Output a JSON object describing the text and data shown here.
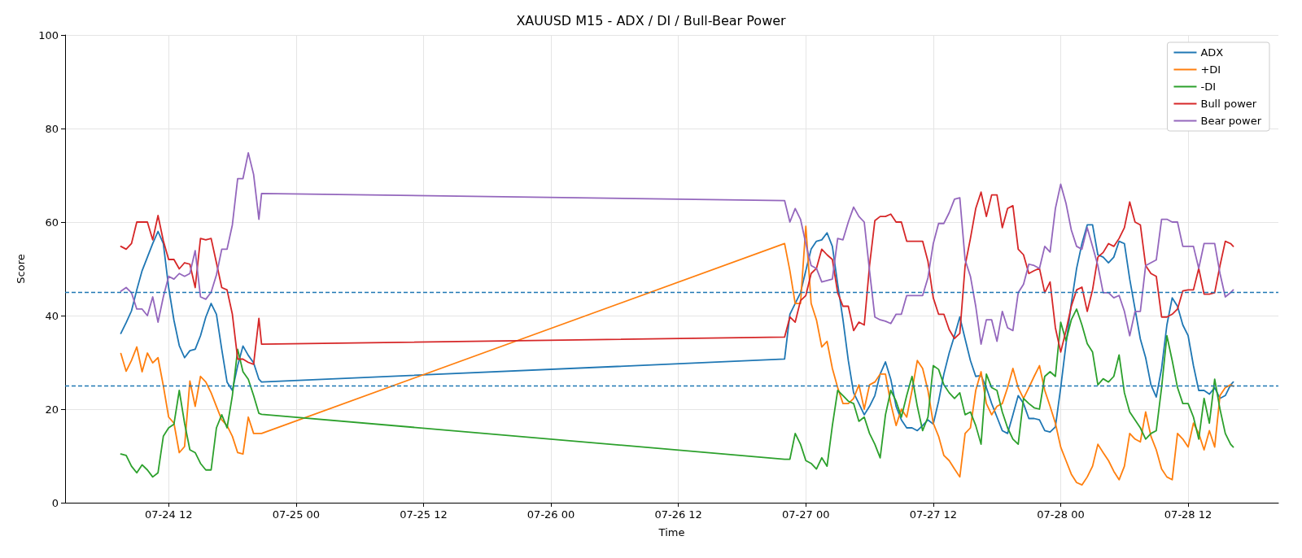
{
  "chart_data": {
    "type": "line",
    "title": "XAUUSD M15 - ADX / DI / Bull-Bear Power",
    "xlabel": "Time",
    "ylabel": "Score",
    "x": [
      "--07-24T07:30",
      "--07-24T08:00",
      "--07-24T08:30",
      "--07-24T09:00",
      "--07-24T09:30",
      "--07-24T10:00",
      "--07-24T10:30",
      "--07-24T11:00",
      "--07-24T11:30",
      "--07-24T12:00",
      "--07-24T12:30",
      "--07-24T13:00",
      "--07-24T13:30",
      "--07-24T14:00",
      "--07-24T14:30",
      "--07-24T15:00",
      "--07-24T15:30",
      "--07-24T16:00",
      "--07-24T16:30",
      "--07-24T17:00",
      "--07-24T17:30",
      "--07-24T18:00",
      "--07-24T18:30",
      "--07-24T19:00",
      "--07-24T19:30",
      "--07-24T20:00",
      "--07-24T20:30",
      "--07-24T20:45",
      "--07-26T22:00",
      "--07-26T22:30",
      "--07-26T23:00",
      "--07-26T23:30",
      "--07-27T00:00",
      "--07-27T00:30",
      "--07-27T01:00",
      "--07-27T01:30",
      "--07-27T02:00",
      "--07-27T02:30",
      "--07-27T03:00",
      "--07-27T03:30",
      "--07-27T04:00",
      "--07-27T04:30",
      "--07-27T05:00",
      "--07-27T05:30",
      "--07-27T06:00",
      "--07-27T06:30",
      "--07-27T07:00",
      "--07-27T07:30",
      "--07-27T08:00",
      "--07-27T08:30",
      "--07-27T09:00",
      "--07-27T09:30",
      "--07-27T10:00",
      "--07-27T10:30",
      "--07-27T11:00",
      "--07-27T11:30",
      "--07-27T12:00",
      "--07-27T12:30",
      "--07-27T13:00",
      "--07-27T13:30",
      "--07-27T14:00",
      "--07-27T14:30",
      "--07-27T15:00",
      "--07-27T15:30",
      "--07-27T16:00",
      "--07-27T16:30",
      "--07-27T17:00",
      "--07-27T17:30",
      "--07-27T18:00",
      "--07-27T18:30",
      "--07-27T19:00",
      "--07-27T19:30",
      "--07-27T20:00",
      "--07-27T20:30",
      "--07-27T21:00",
      "--07-27T21:30",
      "--07-27T22:00",
      "--07-27T22:30",
      "--07-27T23:00",
      "--07-27T23:30",
      "--07-28T00:00",
      "--07-28T00:30",
      "--07-28T01:00",
      "--07-28T01:30",
      "--07-28T02:00",
      "--07-28T02:30",
      "--07-28T03:00",
      "--07-28T03:30",
      "--07-28T04:00",
      "--07-28T04:30",
      "--07-28T05:00",
      "--07-28T05:30",
      "--07-28T06:00",
      "--07-28T06:30",
      "--07-28T07:00",
      "--07-28T07:30",
      "--07-28T08:00",
      "--07-28T08:30",
      "--07-28T09:00",
      "--07-28T09:30",
      "--07-28T10:00",
      "--07-28T10:30",
      "--07-28T11:00",
      "--07-28T11:30",
      "--07-28T12:00",
      "--07-28T12:30",
      "--07-28T13:00",
      "--07-28T13:30",
      "--07-28T14:00",
      "--07-28T14:30",
      "--07-28T15:00",
      "--07-28T15:30",
      "--07-28T16:00",
      "--07-28T16:15"
    ],
    "series": [
      {
        "name": "ADX",
        "color": "#1f77b4",
        "values": [
          36.2,
          38.5,
          41,
          45.5,
          49.6,
          52.5,
          55.4,
          58,
          55.4,
          46,
          39,
          33.6,
          31,
          32.5,
          32.8,
          35.7,
          39.7,
          42.6,
          40.3,
          32.8,
          25.8,
          24,
          29.3,
          33.5,
          31.5,
          29.9,
          26.4,
          25.8,
          30.7,
          40.3,
          42.6,
          44.9,
          49.6,
          54.2,
          55.9,
          56.2,
          57.7,
          54.8,
          46.7,
          39.1,
          30.4,
          23.5,
          21.2,
          18.8,
          20.6,
          22.9,
          27.5,
          30.1,
          26.4,
          20.6,
          17.7,
          16,
          16,
          15.4,
          16.5,
          17.7,
          16.8,
          21.7,
          27.5,
          32,
          35.7,
          39.7,
          35,
          30.4,
          27,
          27.2,
          24.6,
          21.2,
          18.3,
          15.4,
          14.8,
          18.8,
          22.9,
          21.2,
          18,
          18,
          17.7,
          15.4,
          15.1,
          16.2,
          24.6,
          33.9,
          42.6,
          50.1,
          55.4,
          59.4,
          59.4,
          53,
          52.5,
          51.3,
          52.5,
          55.9,
          55.4,
          47.8,
          41.4,
          35,
          31,
          25.2,
          22.6,
          28.7,
          38,
          43.8,
          42,
          38,
          35.7,
          29.3,
          24,
          24,
          23.2,
          24.6,
          22.3,
          22.9,
          25.2,
          25.8
        ]
      },
      {
        "name": "+DI",
        "color": "#ff7f0e",
        "values": [
          31.9,
          28.1,
          30.4,
          33.3,
          28,
          32,
          29.9,
          31,
          25,
          18.3,
          17,
          10.7,
          12,
          26,
          20.6,
          27,
          25.8,
          23.5,
          20.6,
          17.7,
          16.5,
          14.2,
          10.7,
          10.4,
          18.3,
          14.8,
          14.8,
          14.8,
          55.4,
          49.6,
          42.6,
          42.6,
          59.1,
          42.6,
          39.1,
          33.3,
          34.5,
          28.7,
          24.6,
          21.2,
          21.2,
          22.3,
          25.2,
          20,
          25.2,
          25.8,
          27.5,
          27.5,
          21.2,
          16.5,
          20,
          18.3,
          24,
          30.4,
          28.7,
          24,
          17,
          14.2,
          10.1,
          9,
          7.2,
          5.5,
          14.8,
          16,
          24,
          28,
          21.2,
          18.8,
          20.6,
          21.2,
          24.6,
          28.7,
          24.6,
          22.3,
          24.6,
          27,
          29.3,
          24,
          20.6,
          17,
          11.9,
          9,
          6.1,
          4.3,
          3.8,
          5.5,
          7.8,
          12.5,
          10.7,
          9,
          6.7,
          4.9,
          7.8,
          14.8,
          13.6,
          13,
          19.4,
          14.2,
          11.3,
          7.2,
          5.5,
          4.9,
          14.8,
          13.6,
          11.9,
          17,
          14.8,
          11.3,
          15.4,
          11.9,
          22.9,
          24.6,
          25.2,
          24.9
        ]
      },
      {
        "name": "-DI",
        "color": "#2ca02c",
        "values": [
          10.4,
          10.1,
          7.8,
          6.4,
          8.1,
          7,
          5.5,
          6.4,
          14.2,
          16,
          16.8,
          24,
          17,
          11.3,
          10.7,
          8.4,
          7,
          7,
          16,
          18.8,
          16,
          22.9,
          32.8,
          28,
          26.4,
          22.9,
          19.1,
          18.9,
          9.3,
          9.3,
          14.8,
          12.5,
          9,
          8.4,
          7.2,
          9.6,
          7.8,
          16.5,
          24,
          22.9,
          21.7,
          21.2,
          17.4,
          18.3,
          14.8,
          12.5,
          9.6,
          18.8,
          24,
          21.7,
          18.3,
          22.9,
          27,
          20.6,
          15.4,
          18.3,
          29.3,
          28.5,
          25.2,
          23.5,
          22.3,
          23.5,
          18.8,
          19.4,
          16.5,
          12.5,
          27.5,
          24.6,
          24,
          19.4,
          16,
          13.6,
          12.5,
          22.3,
          21.2,
          20.3,
          20,
          27,
          28,
          27,
          38.6,
          34.6,
          39.1,
          41.4,
          38,
          34,
          32.2,
          25.2,
          26.5,
          25.8,
          27,
          31.6,
          23.5,
          19.4,
          17.7,
          16,
          13.6,
          14.8,
          15.4,
          24.6,
          35.7,
          30.4,
          24.6,
          21.2,
          21.2,
          18.3,
          13.6,
          22.3,
          17,
          26.4,
          20,
          14.8,
          12.5,
          11.9
        ]
      },
      {
        "name": "Bull power",
        "color": "#d62728",
        "values": [
          54.8,
          54.2,
          55.4,
          60,
          60,
          60,
          56.2,
          61.4,
          56,
          52,
          52,
          50,
          51.3,
          51,
          46,
          56.5,
          56.2,
          56.5,
          51.3,
          46,
          45.5,
          40.3,
          30.7,
          30.7,
          30,
          29.6,
          39.4,
          33.9,
          35.4,
          39.7,
          38.6,
          43.2,
          44.3,
          49,
          50.1,
          54.2,
          53,
          52,
          44.9,
          42,
          42,
          36.8,
          38.6,
          38,
          50.7,
          60.3,
          61.2,
          61.2,
          61.7,
          60,
          60,
          55.9,
          55.9,
          55.9,
          55.9,
          51.6,
          43.8,
          40.3,
          40.3,
          37,
          35.1,
          36.2,
          50.7,
          56.5,
          62.9,
          66.4,
          61.2,
          65.8,
          65.8,
          58.8,
          62.9,
          63.5,
          54.2,
          53,
          49,
          49.6,
          50.1,
          44.9,
          47.2,
          37.4,
          32.2,
          36.8,
          42,
          45.5,
          46.1,
          40.9,
          45.5,
          52.5,
          53.5,
          55.4,
          54.8,
          56.5,
          58.8,
          64.3,
          60,
          59.4,
          50.7,
          49,
          48.4,
          39.7,
          39.7,
          40.3,
          41.4,
          45.3,
          45.5,
          45.5,
          50.1,
          44.6,
          44.6,
          44.9,
          50.7,
          55.9,
          55.4,
          54.8
        ]
      },
      {
        "name": "Bear power",
        "color": "#9467bd",
        "values": [
          45.2,
          46,
          44.9,
          41.4,
          41.4,
          40,
          44,
          38.6,
          44,
          48.4,
          47.8,
          49,
          48.4,
          49,
          53.9,
          44,
          43.5,
          45,
          48.7,
          54.2,
          54.2,
          59.4,
          69.3,
          69.3,
          74.8,
          70.2,
          60.6,
          66.1,
          64.6,
          60,
          62.9,
          60.6,
          55.4,
          50.7,
          50.1,
          47.2,
          47.5,
          47.8,
          56.5,
          56.2,
          60,
          63.2,
          61.2,
          60,
          49.6,
          39.7,
          39.1,
          38.8,
          38.3,
          40.3,
          40.3,
          44.3,
          44.3,
          44.3,
          44.3,
          48.1,
          55.4,
          59.7,
          59.7,
          62,
          64.9,
          65.2,
          51.9,
          48.4,
          42,
          33.9,
          39.1,
          39.1,
          34.5,
          40.9,
          37.4,
          36.8,
          44.9,
          46.7,
          51,
          50.7,
          50.1,
          54.8,
          53.6,
          62.9,
          68.1,
          64,
          58.3,
          54.8,
          54.2,
          58.8,
          54.8,
          50.7,
          44.9,
          44.9,
          43.8,
          44.3,
          40.9,
          35.7,
          40.9,
          40.9,
          50.7,
          51.3,
          51.9,
          60.6,
          60.6,
          60,
          60,
          54.8,
          54.8,
          54.8,
          50.1,
          55.4,
          55.4,
          55.4,
          49,
          44,
          44.9,
          45.5
        ]
      }
    ],
    "xlim": [
      "--07-24T02:15",
      "--07-28T20:30"
    ],
    "xticks": [
      {
        "value": "--07-24T12:00",
        "label": "07-24 12"
      },
      {
        "value": "--07-25T00:00",
        "label": "07-25 00"
      },
      {
        "value": "--07-25T12:00",
        "label": "07-25 12"
      },
      {
        "value": "--07-26T00:00",
        "label": "07-26 00"
      },
      {
        "value": "--07-26T12:00",
        "label": "07-26 12"
      },
      {
        "value": "--07-27T00:00",
        "label": "07-27 00"
      },
      {
        "value": "--07-27T12:00",
        "label": "07-27 12"
      },
      {
        "value": "--07-28T00:00",
        "label": "07-28 00"
      },
      {
        "value": "--07-28T12:00",
        "label": "07-28 12"
      }
    ],
    "ylim": [
      0,
      100
    ],
    "yticks": [
      0,
      20,
      40,
      60,
      80,
      100
    ],
    "ref_lines": [
      {
        "axis": "y",
        "value": 45,
        "color": "#1f77b4",
        "line_style": "dashed"
      },
      {
        "axis": "y",
        "value": 25,
        "color": "#1f77b4",
        "line_style": "dashed"
      }
    ],
    "grid": true,
    "legend": "top right",
    "marker": "none"
  }
}
